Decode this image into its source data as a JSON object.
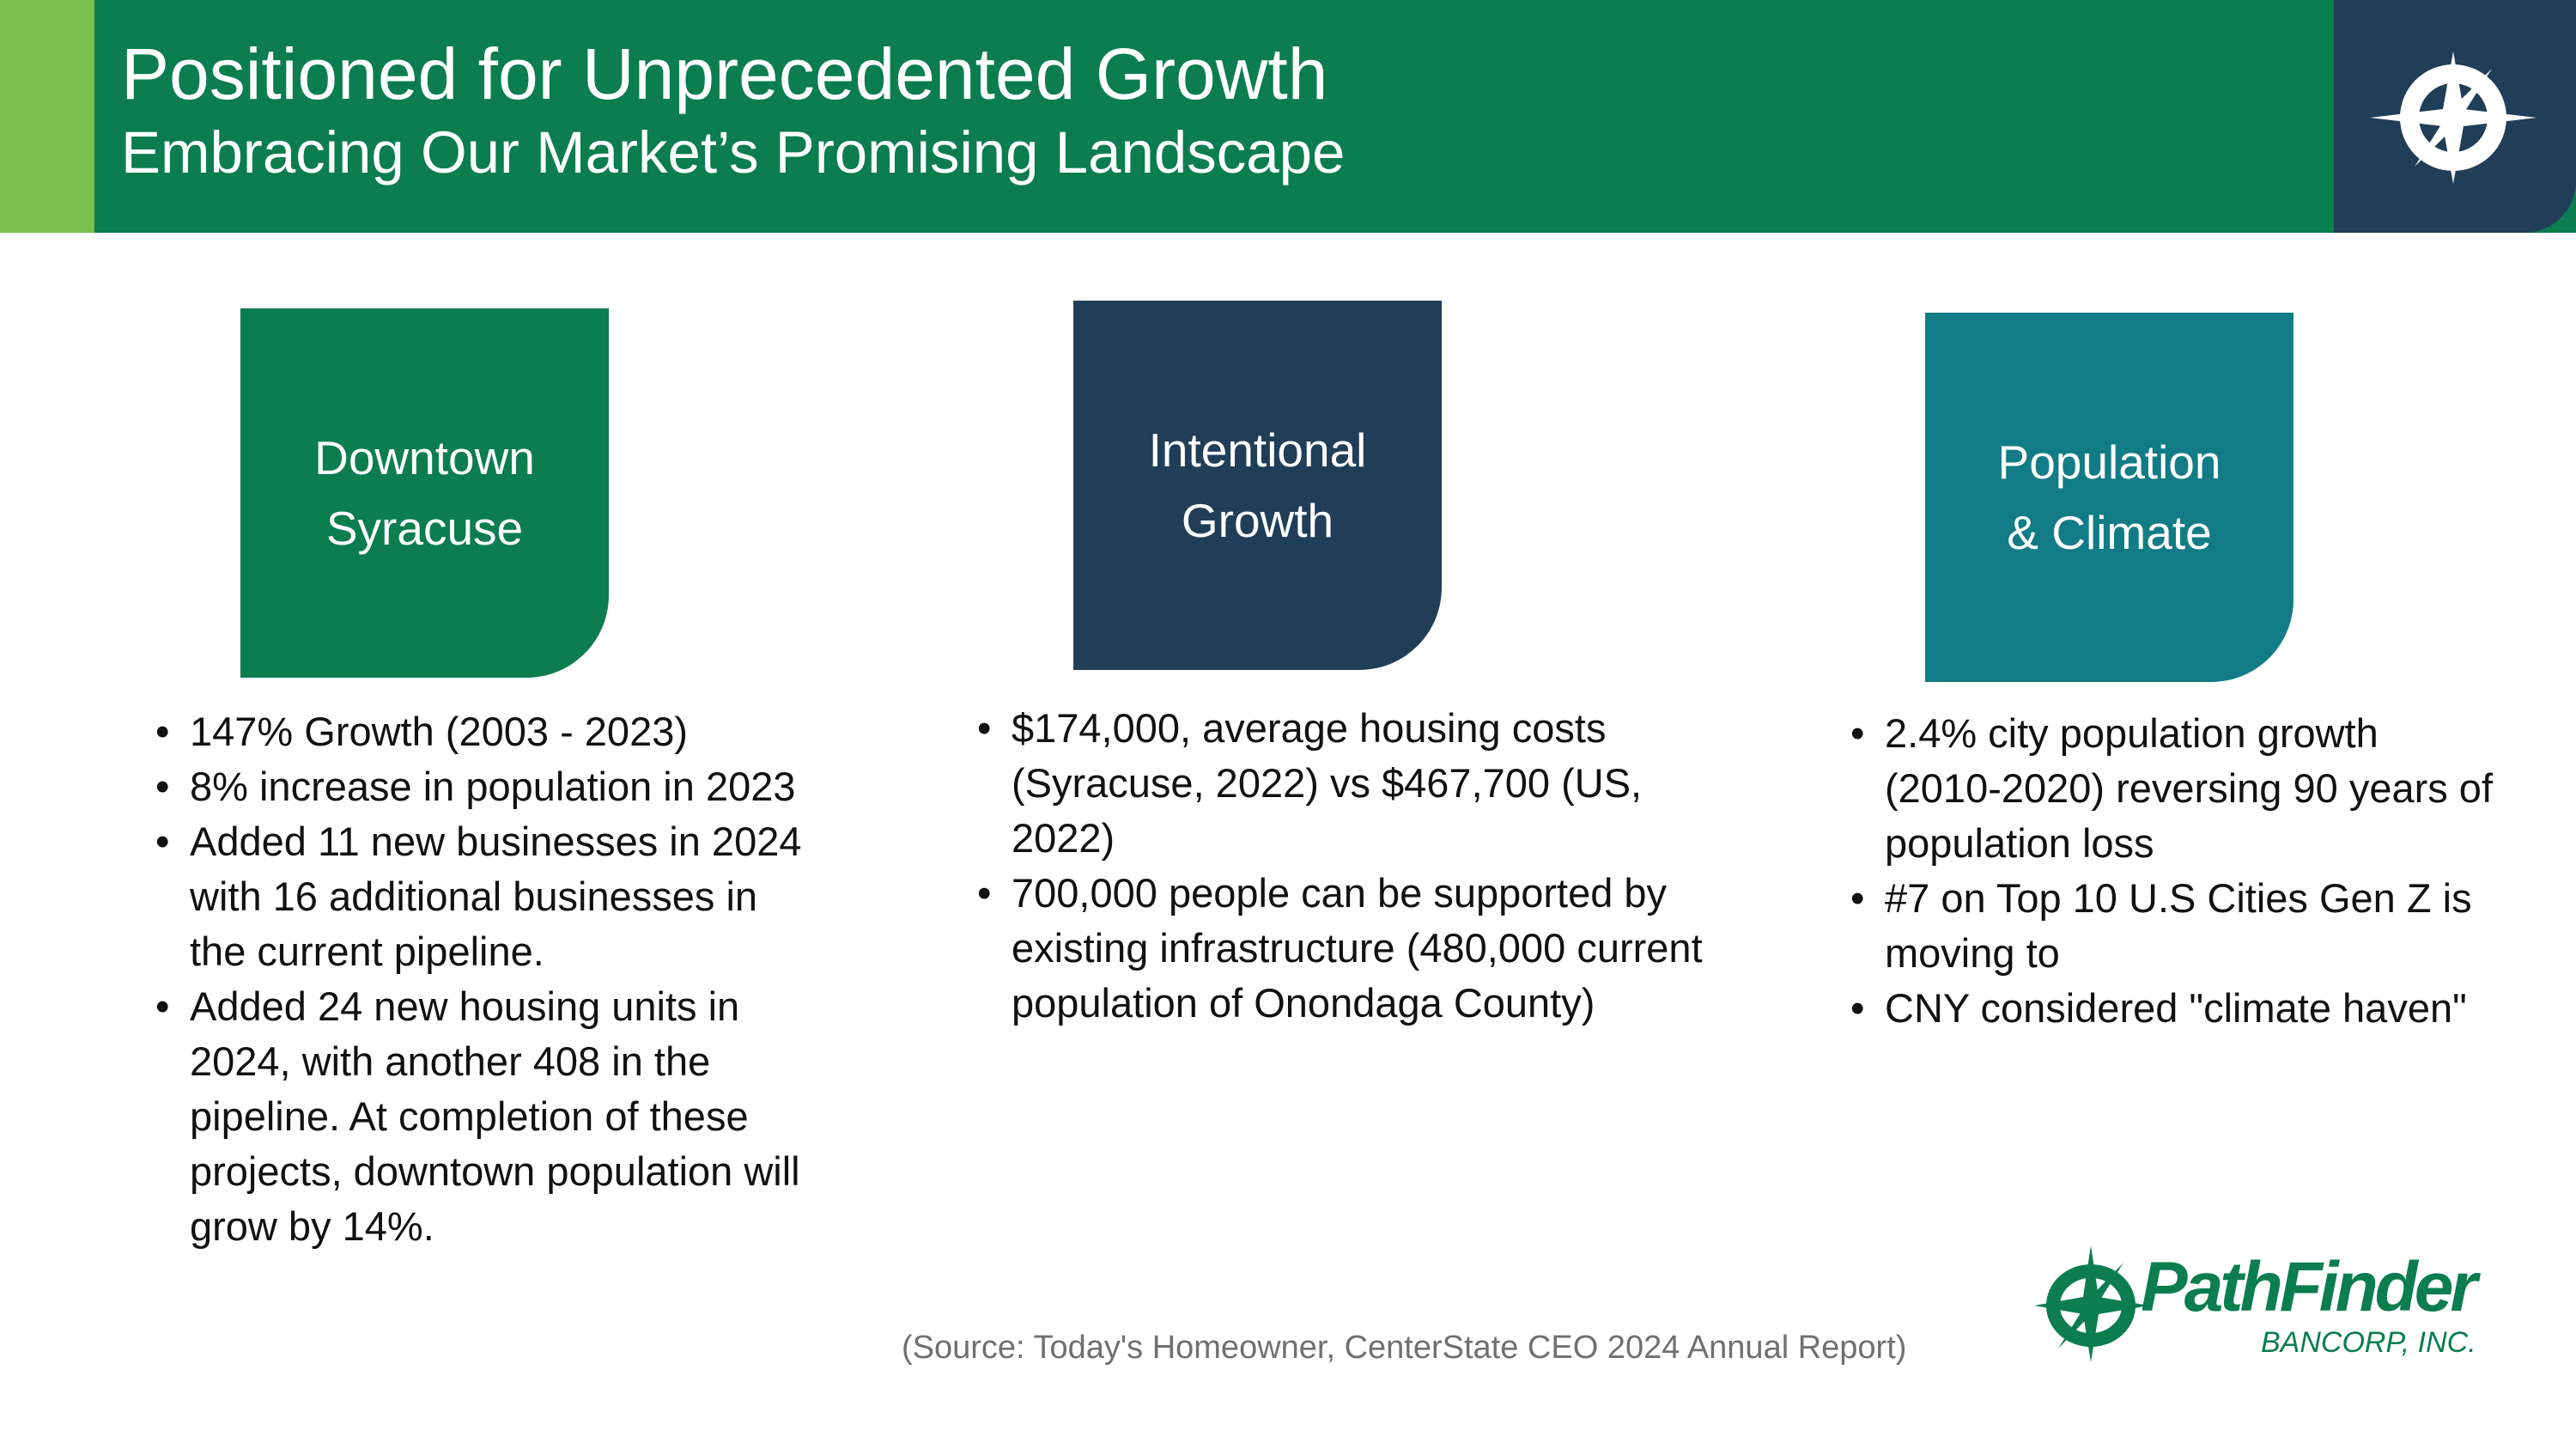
{
  "header": {
    "title": "Positioned for Unprecedented Growth",
    "subtitle": "Embracing Our Market’s Promising Landscape",
    "logo_icon": "compass-icon"
  },
  "colors": {
    "green": "#0b7d4f",
    "light_green": "#7ac04f",
    "navy": "#213e58",
    "teal": "#127c86"
  },
  "cards": [
    {
      "line1": "Downtown",
      "line2": "Syracuse"
    },
    {
      "line1": "Intentional",
      "line2": "Growth"
    },
    {
      "line1": "Population",
      "line2": "& Climate"
    }
  ],
  "columns": [
    {
      "bullets": [
        "147% Growth (2003 - 2023)",
        "8% increase in population in 2023",
        "Added 11 new businesses in 2024 with 16 additional businesses in the current pipeline.",
        "Added 24 new housing units in 2024, with another 408 in the pipeline. At completion of these projects, downtown population will grow by 14%."
      ]
    },
    {
      "bullets": [
        "$174,000, average housing costs (Syracuse, 2022) vs $467,700 (US, 2022)",
        "700,000 people can be supported by existing infrastructure (480,000 current population of Onondaga County)"
      ]
    },
    {
      "bullets": [
        "2.4% city population growth (2010-2020) reversing 90 years of population loss",
        "#7 on Top 10 U.S Cities Gen Z is moving to",
        "CNY considered \"climate haven\""
      ]
    }
  ],
  "source": "(Source: Today's Homeowner, CenterState CEO 2024 Annual Report)",
  "logo": {
    "name": "PathFinder",
    "sub": "BANCORP, INC."
  }
}
